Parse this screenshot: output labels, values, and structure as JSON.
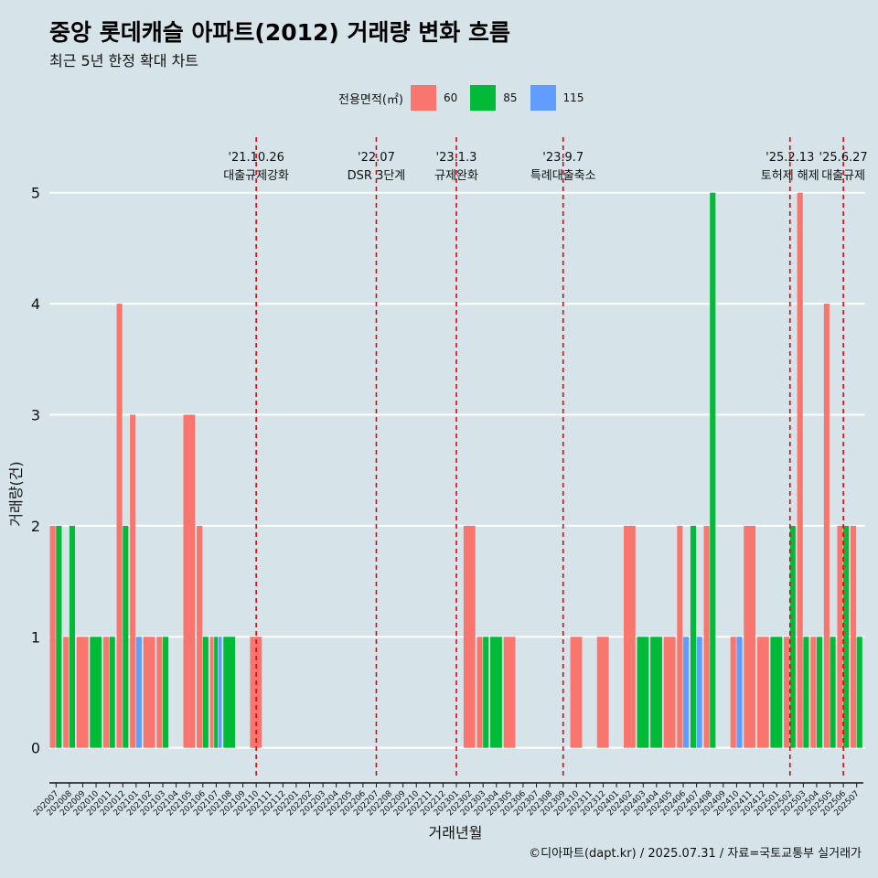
{
  "title": "중앙 롯데캐슬 아파트(2012) 거래량 변화 흐름",
  "subtitle": "최근 5년 한정 확대 차트",
  "caption": "©디아파트(dapt.kr) / 2025.07.31 / 자료=국토교통부 실거래가",
  "colors": {
    "60": "#f8766d",
    "85": "#00ba38",
    "115": "#619cff",
    "event_line": "#e8000b",
    "background": "#d6e4ea",
    "grid": "#ffffff"
  },
  "chart_data": {
    "type": "bar",
    "title": "중앙 롯데캐슬 아파트(2012) 거래량 변화 흐름",
    "subtitle": "최근 5년 한정 확대 차트",
    "xlabel": "거래년월",
    "ylabel": "거래량(건)",
    "ylim": [
      -0.25,
      5.5
    ],
    "yticks": [
      0,
      1,
      2,
      3,
      4,
      5
    ],
    "grid": true,
    "legend": {
      "title": "전용면적(㎡)",
      "position": "top",
      "items": [
        "60",
        "85",
        "115"
      ]
    },
    "categories": [
      "202007",
      "202008",
      "202009",
      "202010",
      "202011",
      "202012",
      "202101",
      "202102",
      "202103",
      "202104",
      "202105",
      "202106",
      "202107",
      "202108",
      "202109",
      "202110",
      "202111",
      "202112",
      "202201",
      "202202",
      "202203",
      "202204",
      "202205",
      "202206",
      "202207",
      "202208",
      "202209",
      "202210",
      "202211",
      "202212",
      "202301",
      "202302",
      "202303",
      "202304",
      "202305",
      "202306",
      "202307",
      "202308",
      "202309",
      "202310",
      "202311",
      "202312",
      "202401",
      "202402",
      "202403",
      "202404",
      "202405",
      "202406",
      "202407",
      "202408",
      "202409",
      "202410",
      "202411",
      "202412",
      "202501",
      "202502",
      "202503",
      "202504",
      "202505",
      "202506",
      "202507"
    ],
    "bars": [
      {
        "month": "202007",
        "series": "60",
        "value": 2
      },
      {
        "month": "202007",
        "series": "85",
        "value": 2
      },
      {
        "month": "202008",
        "series": "60",
        "value": 1
      },
      {
        "month": "202008",
        "series": "85",
        "value": 2
      },
      {
        "month": "202009",
        "series": "60",
        "value": 1
      },
      {
        "month": "202010",
        "series": "85",
        "value": 1
      },
      {
        "month": "202011",
        "series": "60",
        "value": 1
      },
      {
        "month": "202011",
        "series": "85",
        "value": 1
      },
      {
        "month": "202012",
        "series": "60",
        "value": 4
      },
      {
        "month": "202012",
        "series": "85",
        "value": 2
      },
      {
        "month": "202101",
        "series": "60",
        "value": 3
      },
      {
        "month": "202101",
        "series": "115",
        "value": 1
      },
      {
        "month": "202102",
        "series": "60",
        "value": 1
      },
      {
        "month": "202103",
        "series": "60",
        "value": 1
      },
      {
        "month": "202103",
        "series": "85",
        "value": 1
      },
      {
        "month": "202105",
        "series": "60",
        "value": 3
      },
      {
        "month": "202106",
        "series": "60",
        "value": 2
      },
      {
        "month": "202106",
        "series": "85",
        "value": 1
      },
      {
        "month": "202107",
        "series": "60",
        "value": 1
      },
      {
        "month": "202107",
        "series": "85",
        "value": 1
      },
      {
        "month": "202107",
        "series": "115",
        "value": 1
      },
      {
        "month": "202108",
        "series": "85",
        "value": 1
      },
      {
        "month": "202110",
        "series": "60",
        "value": 1
      },
      {
        "month": "202302",
        "series": "60",
        "value": 2
      },
      {
        "month": "202303",
        "series": "60",
        "value": 1
      },
      {
        "month": "202303",
        "series": "85",
        "value": 1
      },
      {
        "month": "202304",
        "series": "85",
        "value": 1
      },
      {
        "month": "202305",
        "series": "60",
        "value": 1
      },
      {
        "month": "202310",
        "series": "60",
        "value": 1
      },
      {
        "month": "202312",
        "series": "60",
        "value": 1
      },
      {
        "month": "202402",
        "series": "60",
        "value": 2
      },
      {
        "month": "202403",
        "series": "85",
        "value": 1
      },
      {
        "month": "202404",
        "series": "85",
        "value": 1
      },
      {
        "month": "202405",
        "series": "60",
        "value": 1
      },
      {
        "month": "202406",
        "series": "60",
        "value": 2
      },
      {
        "month": "202406",
        "series": "115",
        "value": 1
      },
      {
        "month": "202407",
        "series": "85",
        "value": 2
      },
      {
        "month": "202407",
        "series": "115",
        "value": 1
      },
      {
        "month": "202408",
        "series": "60",
        "value": 2
      },
      {
        "month": "202408",
        "series": "85",
        "value": 5
      },
      {
        "month": "202410",
        "series": "60",
        "value": 1
      },
      {
        "month": "202410",
        "series": "115",
        "value": 1
      },
      {
        "month": "202411",
        "series": "60",
        "value": 2
      },
      {
        "month": "202412",
        "series": "60",
        "value": 1
      },
      {
        "month": "202501",
        "series": "85",
        "value": 1
      },
      {
        "month": "202502",
        "series": "60",
        "value": 1
      },
      {
        "month": "202502",
        "series": "85",
        "value": 2
      },
      {
        "month": "202503",
        "series": "60",
        "value": 5
      },
      {
        "month": "202503",
        "series": "85",
        "value": 1
      },
      {
        "month": "202504",
        "series": "60",
        "value": 1
      },
      {
        "month": "202504",
        "series": "85",
        "value": 1
      },
      {
        "month": "202505",
        "series": "60",
        "value": 4
      },
      {
        "month": "202505",
        "series": "85",
        "value": 1
      },
      {
        "month": "202506",
        "series": "60",
        "value": 2
      },
      {
        "month": "202506",
        "series": "85",
        "value": 2
      },
      {
        "month": "202507",
        "series": "60",
        "value": 2
      },
      {
        "month": "202507",
        "series": "85",
        "value": 1
      }
    ],
    "events": [
      {
        "month": "202110",
        "date": "'21.10.26",
        "label": "대출규제강화"
      },
      {
        "month": "202207",
        "date": "'22.07",
        "label": "DSR 3단계"
      },
      {
        "month": "202301",
        "date": "'23.1.3",
        "label": "규제완화"
      },
      {
        "month": "202309",
        "date": "'23.9.7",
        "label": "특례대출축소"
      },
      {
        "month": "202502",
        "date": "'25.2.13",
        "label": "토허제 해제"
      },
      {
        "month": "202506",
        "date": "'25.6.27",
        "label": "대출규제"
      }
    ]
  }
}
